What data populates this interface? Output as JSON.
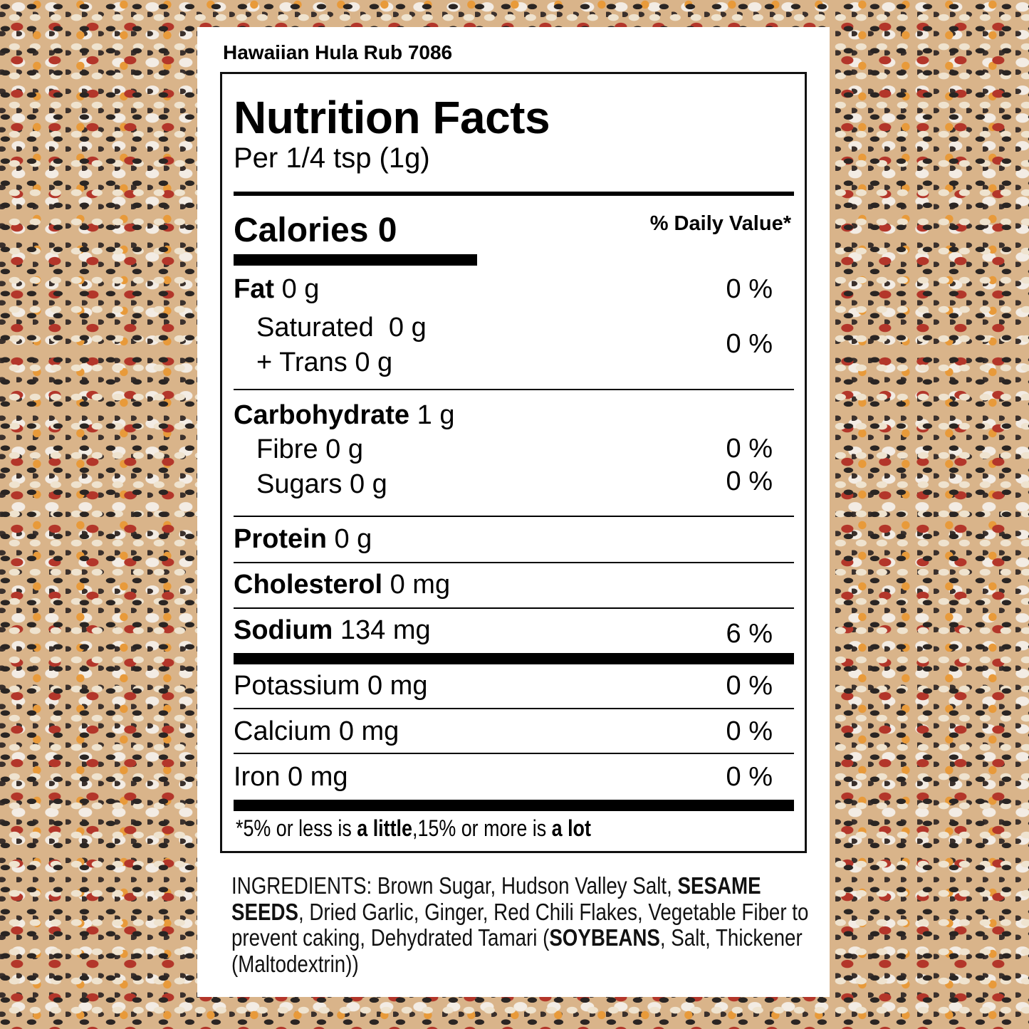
{
  "product_name": "Hawaiian Hula Rub 7086",
  "title": "Nutrition Facts",
  "serving": "Per 1/4 tsp (1g)",
  "calories": {
    "label": "Calories",
    "value": "0"
  },
  "daily_value_header": "% Daily Value*",
  "rows": {
    "fat": {
      "label": "Fat",
      "amount": "0 g",
      "dv": "0 %"
    },
    "saturated": {
      "label": "Saturated",
      "amount": "0 g"
    },
    "trans": {
      "label": "+ Trans",
      "amount": "0 g"
    },
    "sat_trans_dv": "0 %",
    "carbohydrate": {
      "label": "Carbohydrate",
      "amount": "1 g"
    },
    "fibre": {
      "label": "Fibre",
      "amount": "0 g",
      "dv": "0 %"
    },
    "sugars": {
      "label": "Sugars",
      "amount": "0 g",
      "dv": "0 %"
    },
    "protein": {
      "label": "Protein",
      "amount": "0 g"
    },
    "cholesterol": {
      "label": "Cholesterol",
      "amount": "0 mg"
    },
    "sodium": {
      "label": "Sodium",
      "amount": "134 mg",
      "dv": "6 %"
    },
    "potassium": {
      "label": "Potassium",
      "amount": "0 mg",
      "dv": "0 %"
    },
    "calcium": {
      "label": "Calcium",
      "amount": "0 mg",
      "dv": "0 %"
    },
    "iron": {
      "label": "Iron",
      "amount": "0 mg",
      "dv": "0 %"
    }
  },
  "footnote": {
    "p1": "*5% or less is ",
    "b1": "a little",
    "p2": ",15% or more is ",
    "b2": "a lot"
  },
  "ingredients": {
    "t1": "INGREDIENTS: Brown Sugar, Hudson Valley Salt, ",
    "b1": "SESAME SEEDS",
    "t2": ", Dried Garlic, Ginger, Red Chili Flakes, Vegetable Fiber to prevent caking, Dehydrated Tamari (",
    "b2": "SOYBEANS",
    "t3": ", Salt, Thickener (Maltodextrin))"
  }
}
